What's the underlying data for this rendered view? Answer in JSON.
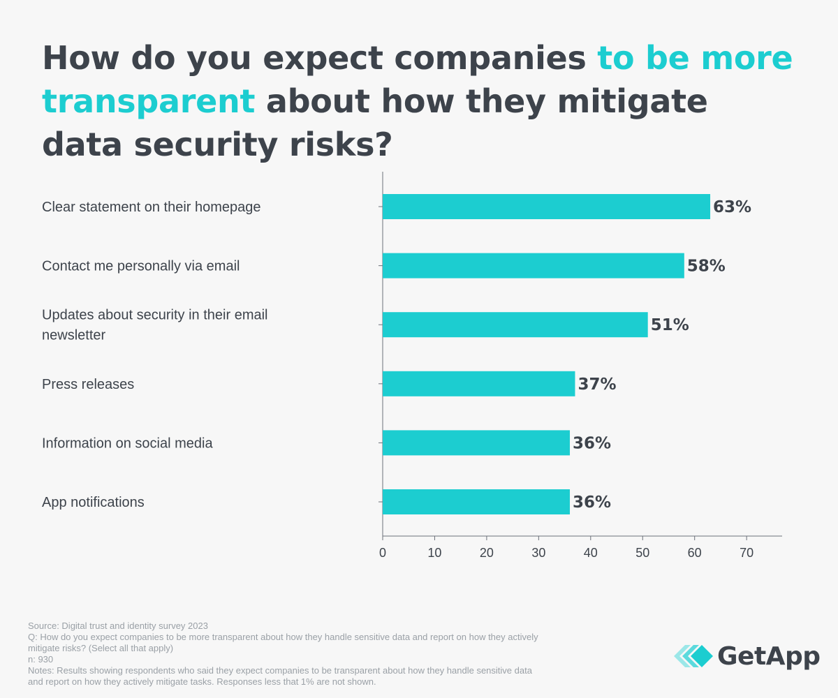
{
  "chart_data": {
    "type": "bar",
    "orientation": "horizontal",
    "title": "How do you expect companies to be more transparent about how they mitigate data security risks?",
    "title_parts": {
      "before": "How do you expect companies ",
      "highlight": "to be more transparent",
      "after": " about how they mitigate data security risks?"
    },
    "categories": [
      [
        "Clear statement on their homepage"
      ],
      [
        "Contact me personally via email"
      ],
      [
        "Updates about security in their email",
        "newsletter"
      ],
      [
        "Press releases"
      ],
      [
        "Information on social media"
      ],
      [
        "App notifications"
      ]
    ],
    "values": [
      63,
      58,
      51,
      37,
      36,
      36
    ],
    "value_labels": [
      "63%",
      "58%",
      "51%",
      "37%",
      "36%",
      "36%"
    ],
    "xticks": [
      0,
      10,
      20,
      30,
      40,
      50,
      60,
      70
    ],
    "xlim": [
      0,
      77
    ],
    "xlabel": "",
    "ylabel": "",
    "grid": false,
    "colors": {
      "bar": "#1ccdd0",
      "text": "#3d434b",
      "axis": "#6b7079",
      "highlight": "#1ccdd0"
    }
  },
  "footnotes": {
    "source": "Source: Digital trust and identity survey 2023",
    "question_line1": "Q: How do you expect companies to be more transparent about how they handle sensitive data and report on how they actively",
    "question_line2": "mitigate risks? (Select all that apply)",
    "n": "n: 930",
    "notes_line1": "Notes: Results showing respondents who said they expect companies to be transparent about how they handle sensitive data",
    "notes_line2": "and report on how they actively mitigate tasks. Responses less that 1% are not shown."
  },
  "logo": {
    "text": "GetApp",
    "icon": "getapp-chevrons-icon"
  }
}
